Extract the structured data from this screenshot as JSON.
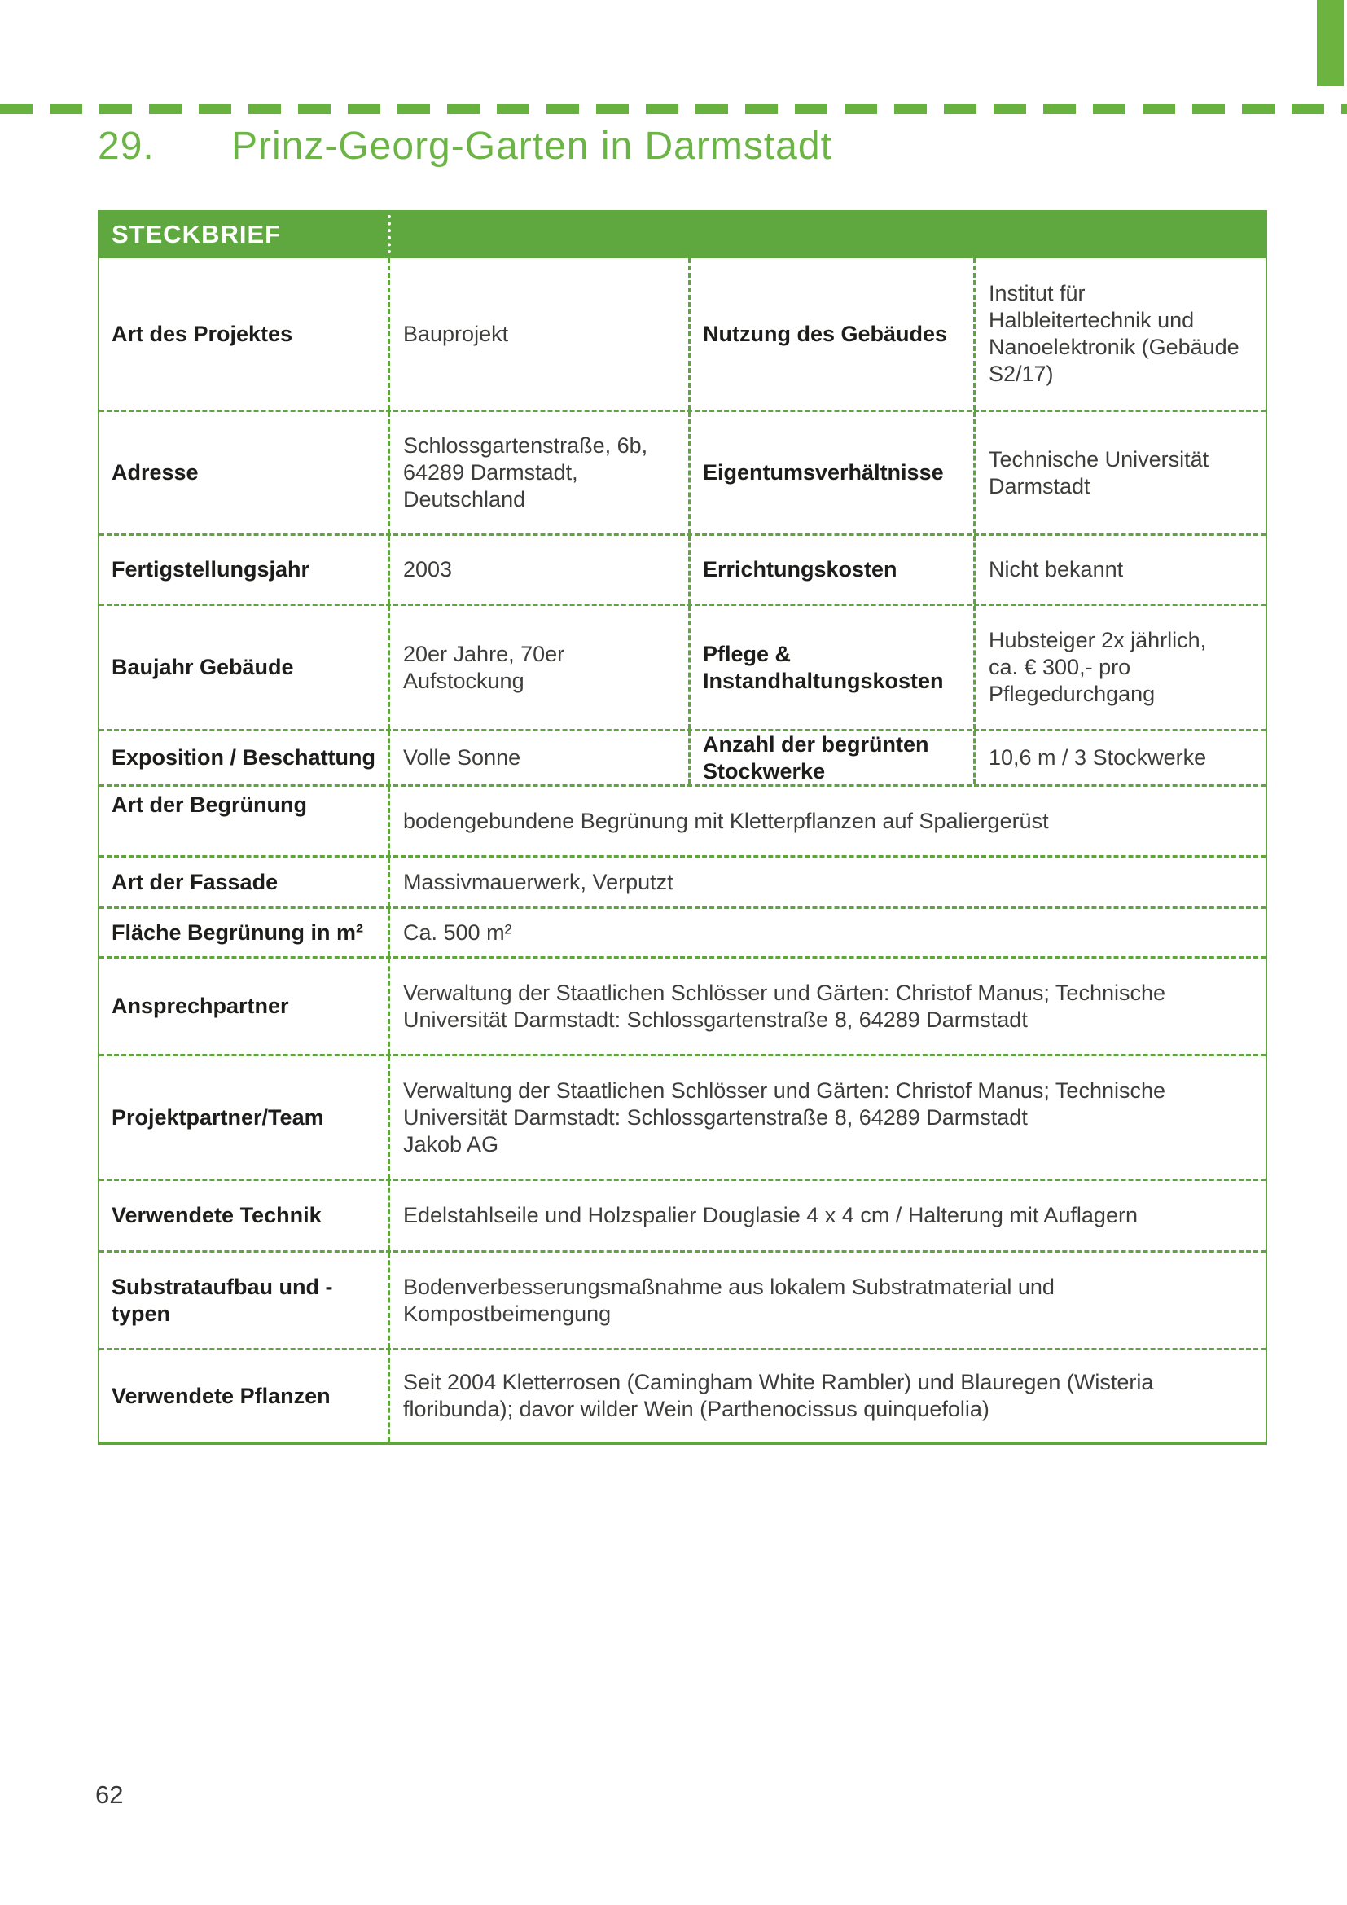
{
  "title": {
    "number": "29.",
    "text": "Prinz-Georg-Garten in Darmstadt"
  },
  "page": {
    "number": "62"
  },
  "colors": {
    "accent_green_bright": "#6CB43F",
    "table_green": "#5FA43C",
    "header_fill_green": "#5EA83F",
    "title_green": "#6CB446",
    "label_text": "#1D1D1B",
    "value_text": "#3D3D3B"
  },
  "table": {
    "header": "STECKBRIEF",
    "rows4": [
      {
        "l1": "Art des Projektes",
        "v1": "Bauprojekt",
        "l2": "Nutzung des Gebäudes",
        "v2": "Institut für\nHalbleitertechnik und\nNanoelektronik (Gebäude\nS2/17)"
      },
      {
        "l1": "Adresse",
        "v1": "Schlossgartenstraße, 6b,\n64289 Darmstadt,\nDeutschland",
        "l2": "Eigentumsverhältnisse",
        "v2": "Technische Universität\nDarmstadt"
      },
      {
        "l1": "Fertigstellungsjahr",
        "v1": "2003",
        "l2": "Errichtungskosten",
        "v2": "Nicht bekannt"
      },
      {
        "l1": "Baujahr Gebäude",
        "v1": "20er Jahre, 70er\nAufstockung",
        "l2": "Pflege &\nInstandhaltungskosten",
        "v2": "Hubsteiger 2x jährlich,\nca. € 300,- pro\nPflegedurchgang"
      },
      {
        "l1": "Exposition / Beschattung",
        "v1": "Volle Sonne",
        "l2": "Anzahl der begrünten\nStockwerke",
        "v2": "10,6 m / 3 Stockwerke"
      }
    ],
    "rows2": [
      {
        "label": "Art der Begrünung",
        "value": "bodengebundene Begrünung mit Kletterpflanzen auf Spaliergerüst"
      },
      {
        "label": "Art der Fassade",
        "value": "Massivmauerwerk, Verputzt"
      },
      {
        "label": "Fläche Begrünung in m²",
        "value": "Ca. 500 m²"
      },
      {
        "label": "Ansprechpartner",
        "value": "Verwaltung der Staatlichen Schlösser und Gärten: Christof Manus; Technische\nUniversität Darmstadt: Schlossgartenstraße 8, 64289 Darmstadt"
      },
      {
        "label": "Projektpartner/Team",
        "value": "Verwaltung der Staatlichen Schlösser und Gärten: Christof Manus; Technische\nUniversität Darmstadt: Schlossgartenstraße 8, 64289 Darmstadt\nJakob AG"
      },
      {
        "label": "Verwendete Technik",
        "value": "Edelstahlseile und Holzspalier Douglasie 4 x 4 cm / Halterung mit Auflagern"
      },
      {
        "label": "Substrataufbau und -\ntypen",
        "value": "Bodenverbesserungsmaßnahme aus lokalem Substratmaterial und\nKompostbeimengung"
      },
      {
        "label": "Verwendete Pflanzen",
        "value": "Seit 2004 Kletterrosen (Camingham White Rambler) und Blauregen (Wisteria\nfloribunda); davor wilder Wein (Parthenocissus quinquefolia)"
      }
    ]
  }
}
